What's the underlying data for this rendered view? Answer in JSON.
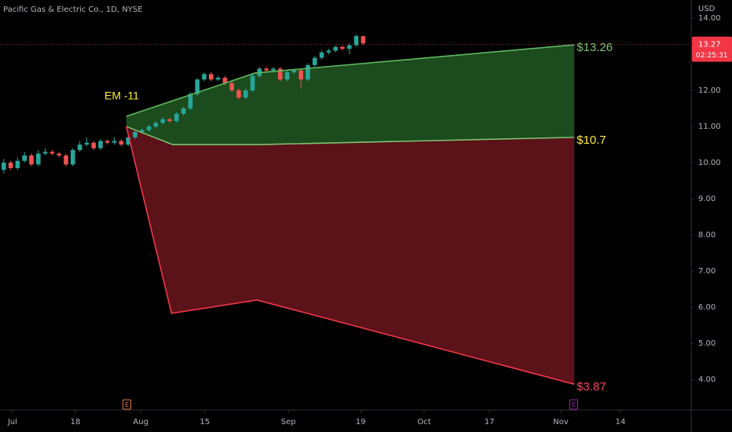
{
  "chart_data": {
    "type": "candlestick",
    "title": "Pacific Gas & Electric Co., 1D, NYSE",
    "currency": "USD",
    "annotation": "EM -11",
    "xlim": [
      0,
      110
    ],
    "xticks": [
      {
        "value": 2,
        "label": "Jul"
      },
      {
        "value": 12,
        "label": "18"
      },
      {
        "value": 22.4,
        "label": "Aug"
      },
      {
        "value": 32.6,
        "label": "15"
      },
      {
        "value": 45.9,
        "label": "Sep"
      },
      {
        "value": 57.4,
        "label": "19"
      },
      {
        "value": 67.5,
        "label": "Oct"
      },
      {
        "value": 77.9,
        "label": "17"
      },
      {
        "value": 89.25,
        "label": "Nov"
      },
      {
        "value": 98.75,
        "label": "14"
      }
    ],
    "ylim": [
      3.2,
      14.5
    ],
    "yticks": [
      {
        "value": 4,
        "label": "4.00"
      },
      {
        "value": 5,
        "label": "5.00"
      },
      {
        "value": 6,
        "label": "6.00"
      },
      {
        "value": 7,
        "label": "7.00"
      },
      {
        "value": 8,
        "label": "8.00"
      },
      {
        "value": 9,
        "label": "9.00"
      },
      {
        "value": 10,
        "label": "10.00"
      },
      {
        "value": 11,
        "label": "11.00"
      },
      {
        "value": 12,
        "label": "12.00"
      },
      {
        "value": 14,
        "label": "14.00"
      }
    ],
    "up_color": "#26a69a",
    "down_color": "#ef5350",
    "x": [
      0.6,
      1.7,
      2.8,
      3.9,
      5.0,
      6.1,
      7.2,
      8.3,
      9.4,
      10.5,
      11.6,
      12.7,
      13.8,
      14.9,
      16.0,
      17.1,
      18.2,
      19.3,
      20.4,
      21.5,
      22.6,
      23.7,
      24.8,
      25.9,
      27.0,
      28.1,
      29.2,
      30.3,
      31.4,
      32.5,
      33.6,
      34.7,
      35.8,
      36.9,
      38.0,
      39.1,
      40.2,
      41.3,
      42.4,
      43.5,
      44.6,
      45.7,
      46.8,
      47.9,
      49.0,
      50.1,
      51.2,
      52.3,
      53.4,
      54.5,
      55.6,
      56.7,
      57.8
    ],
    "ohlc": [
      [
        9.8,
        10.1,
        9.7,
        10.0
      ],
      [
        10.0,
        10.05,
        9.8,
        9.85
      ],
      [
        9.85,
        10.15,
        9.8,
        10.05
      ],
      [
        10.05,
        10.3,
        10.0,
        10.2
      ],
      [
        10.2,
        10.25,
        9.9,
        9.95
      ],
      [
        9.95,
        10.35,
        9.9,
        10.25
      ],
      [
        10.25,
        10.4,
        10.2,
        10.3
      ],
      [
        10.3,
        10.35,
        10.2,
        10.25
      ],
      [
        10.25,
        10.3,
        10.15,
        10.2
      ],
      [
        10.2,
        10.25,
        9.9,
        9.95
      ],
      [
        9.95,
        10.4,
        9.9,
        10.35
      ],
      [
        10.35,
        10.6,
        10.3,
        10.5
      ],
      [
        10.5,
        10.7,
        10.45,
        10.55
      ],
      [
        10.55,
        10.6,
        10.35,
        10.4
      ],
      [
        10.4,
        10.65,
        10.35,
        10.6
      ],
      [
        10.6,
        10.65,
        10.5,
        10.55
      ],
      [
        10.55,
        10.7,
        10.5,
        10.6
      ],
      [
        10.6,
        10.65,
        10.45,
        10.5
      ],
      [
        10.5,
        10.75,
        10.45,
        10.7
      ],
      [
        10.7,
        10.9,
        10.65,
        10.85
      ],
      [
        10.85,
        10.95,
        10.8,
        10.9
      ],
      [
        10.9,
        11.05,
        10.85,
        11.0
      ],
      [
        11.0,
        11.15,
        10.95,
        11.1
      ],
      [
        11.1,
        11.25,
        11.05,
        11.2
      ],
      [
        11.2,
        11.25,
        11.1,
        11.15
      ],
      [
        11.15,
        11.4,
        11.1,
        11.35
      ],
      [
        11.35,
        11.55,
        11.3,
        11.5
      ],
      [
        11.5,
        11.95,
        11.45,
        11.9
      ],
      [
        11.9,
        12.35,
        11.85,
        12.3
      ],
      [
        12.3,
        12.5,
        12.25,
        12.45
      ],
      [
        12.45,
        12.5,
        12.25,
        12.3
      ],
      [
        12.3,
        12.4,
        12.25,
        12.35
      ],
      [
        12.35,
        12.4,
        12.15,
        12.2
      ],
      [
        12.2,
        12.25,
        11.95,
        12.0
      ],
      [
        12.0,
        12.05,
        11.75,
        11.8
      ],
      [
        11.8,
        12.05,
        11.75,
        12.0
      ],
      [
        12.0,
        12.45,
        11.95,
        12.4
      ],
      [
        12.4,
        12.65,
        12.35,
        12.6
      ],
      [
        12.6,
        12.65,
        12.5,
        12.55
      ],
      [
        12.55,
        12.65,
        12.5,
        12.6
      ],
      [
        12.6,
        12.65,
        12.25,
        12.3
      ],
      [
        12.3,
        12.55,
        12.25,
        12.5
      ],
      [
        12.5,
        12.6,
        12.45,
        12.55
      ],
      [
        12.55,
        12.6,
        12.05,
        12.3
      ],
      [
        12.3,
        12.75,
        12.25,
        12.7
      ],
      [
        12.7,
        12.95,
        12.65,
        12.9
      ],
      [
        12.9,
        13.1,
        12.85,
        13.05
      ],
      [
        13.05,
        13.15,
        13.0,
        13.1
      ],
      [
        13.1,
        13.25,
        13.05,
        13.2
      ],
      [
        13.2,
        13.25,
        13.1,
        13.15
      ],
      [
        13.15,
        13.3,
        13.0,
        13.25
      ],
      [
        13.25,
        13.55,
        13.2,
        13.5
      ],
      [
        13.5,
        13.5,
        13.25,
        13.3
      ]
    ],
    "bands": [
      {
        "x": [
          20.1,
          40.6,
          91.4
        ],
        "values": [
          11.28,
          12.48,
          13.26
        ],
        "color": "#5fb85f",
        "fill": "rgba(46,125,50,0.6)",
        "value_labels": [
          null,
          null,
          "$13.26"
        ],
        "label_color": "#7cc36e"
      },
      {
        "x": [
          20.1,
          27.5,
          41.3,
          91.4
        ],
        "values": [
          11.0,
          10.5,
          10.5,
          10.7
        ],
        "color": "#7cc36e",
        "value_labels": [
          null,
          null,
          null,
          "$10.7"
        ],
        "label_color": "#ffeb3b"
      },
      {
        "x": [
          20.1,
          27.3,
          40.9,
          91.4
        ],
        "values": [
          11.0,
          5.83,
          6.2,
          3.87
        ],
        "color": "#f23645",
        "fill": "rgba(140,28,38,0.65)",
        "value_labels": [
          null,
          null,
          null,
          "$3.87"
        ],
        "label_color": "#f2475a"
      }
    ],
    "events": [
      {
        "x": 20.2,
        "label": "E",
        "color": "#e0774b"
      },
      {
        "x": 91.3,
        "label": "E",
        "color": "#9c27b0"
      }
    ],
    "last_price": {
      "value": 13.27,
      "countdown": "02:25:31",
      "color": "#f23645"
    }
  }
}
